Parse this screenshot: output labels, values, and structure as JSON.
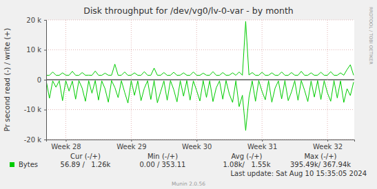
{
  "chart_data": {
    "type": "line",
    "title": "Disk throughput for /dev/vg0/lv-0-var - by month",
    "y_label": "Pr second read (-) / write (+)",
    "watermark": "RRDTOOL / TOBI OETIKER",
    "stats": {
      "headers": [
        "Cur (-/+)",
        "Min (-/+)",
        "Avg (-/+)",
        "Max (-/+)"
      ],
      "values": [
        "56.89 /   1.26k",
        "0.00 / 353.11",
        "1.08k/   1.55k",
        "395.49k/ 367.94k"
      ]
    },
    "footer": "Last update: Sat Aug 10 15:35:05 2024",
    "credit": "Munin 2.0.56",
    "grid": true,
    "xlim": [
      27.7,
      32.41
    ],
    "xticks": [
      {
        "value": 28,
        "label": "Week 28"
      },
      {
        "value": 29,
        "label": "Week 29"
      },
      {
        "value": 30,
        "label": "Week 30"
      },
      {
        "value": 31,
        "label": "Week 31"
      },
      {
        "value": 32,
        "label": "Week 32"
      }
    ],
    "ylim": [
      -20000,
      20000
    ],
    "yticks": [
      {
        "value": -20000,
        "label": "-20 k"
      },
      {
        "value": -10000,
        "label": "-10 k"
      },
      0,
      {
        "value": 10000,
        "label": "10 k"
      },
      {
        "value": 20000,
        "label": "20 k"
      }
    ],
    "x": [
      27.7,
      27.75,
      27.8,
      27.85,
      27.9,
      27.95,
      28.0,
      28.05,
      28.1,
      28.15,
      28.2,
      28.25,
      28.3,
      28.35,
      28.4,
      28.45,
      28.5,
      28.55,
      28.6,
      28.65,
      28.7,
      28.75,
      28.8,
      28.85,
      28.9,
      28.95,
      29.0,
      29.05,
      29.1,
      29.15,
      29.2,
      29.25,
      29.3,
      29.35,
      29.4,
      29.45,
      29.5,
      29.55,
      29.6,
      29.65,
      29.7,
      29.75,
      29.8,
      29.85,
      29.9,
      29.95,
      30.0,
      30.05,
      30.1,
      30.15,
      30.2,
      30.25,
      30.3,
      30.35,
      30.4,
      30.45,
      30.5,
      30.55,
      30.6,
      30.65,
      30.7,
      30.75,
      30.8,
      30.85,
      30.9,
      30.95,
      31.0,
      31.05,
      31.1,
      31.15,
      31.2,
      31.25,
      31.3,
      31.35,
      31.4,
      31.45,
      31.5,
      31.55,
      31.6,
      31.65,
      31.7,
      31.75,
      31.8,
      31.85,
      31.9,
      31.95,
      32.0,
      32.05,
      32.1,
      32.15,
      32.2,
      32.25,
      32.3,
      32.35,
      32.4
    ],
    "series": [
      {
        "name": "Bytes",
        "color": "#00cc00",
        "values": [
          1500,
          1450,
          2600,
          1500,
          1480,
          2300,
          1520,
          1500,
          2800,
          1490,
          1460,
          2400,
          1500,
          1530,
          1470,
          2900,
          1500,
          1480,
          2200,
          1510,
          1500,
          5200,
          1490,
          1500,
          2600,
          1470,
          1520,
          2300,
          1500,
          1480,
          2700,
          1500,
          1490,
          3900,
          1510,
          1500,
          2400,
          1470,
          1500,
          2500,
          1490,
          1520,
          2300,
          1500,
          1480,
          2600,
          1500,
          1460,
          2200,
          1510,
          1500,
          2700,
          1490,
          1470,
          2400,
          1500,
          1520,
          2300,
          1480,
          2600,
          1500,
          19500,
          1600,
          2400,
          1490,
          1500,
          2500,
          1480,
          1510,
          2300,
          1500,
          1490,
          2600,
          1500,
          1470,
          2400,
          1510,
          1500,
          2800,
          1490,
          1500,
          2300,
          1480,
          1520,
          2500,
          1500,
          1490,
          2700,
          1500,
          1480,
          2300,
          1500,
          3400,
          5000,
          1500
        ]
      },
      {
        "color": "#00cc00",
        "values": [
          -300,
          -6200,
          -400,
          -2500,
          -350,
          -7000,
          -300,
          -3800,
          -450,
          -6500,
          -300,
          -2800,
          -7200,
          -350,
          -4500,
          -300,
          -6800,
          -400,
          -3000,
          -7500,
          -300,
          -2600,
          -6000,
          -350,
          -4200,
          -7800,
          -300,
          -5200,
          -400,
          -7000,
          -2900,
          -350,
          -6600,
          -300,
          -7700,
          -4000,
          -400,
          -6900,
          -300,
          -3300,
          -7400,
          -350,
          -5500,
          -300,
          -6800,
          -400,
          -3600,
          -7100,
          -300,
          -5900,
          -350,
          -7300,
          -2700,
          -400,
          -6500,
          -300,
          -4800,
          -7600,
          -350,
          -9000,
          -5200,
          -17000,
          -6000,
          -400,
          -7200,
          -300,
          -3900,
          -6700,
          -350,
          -7500,
          -2800,
          -400,
          -6400,
          -300,
          -7000,
          -4100,
          -350,
          -6900,
          -300,
          -3500,
          -7300,
          -400,
          -5800,
          -300,
          -6600,
          -350,
          -4400,
          -7200,
          -300,
          -6100,
          -400,
          -7600,
          -3000,
          -5300,
          -800
        ]
      }
    ]
  }
}
